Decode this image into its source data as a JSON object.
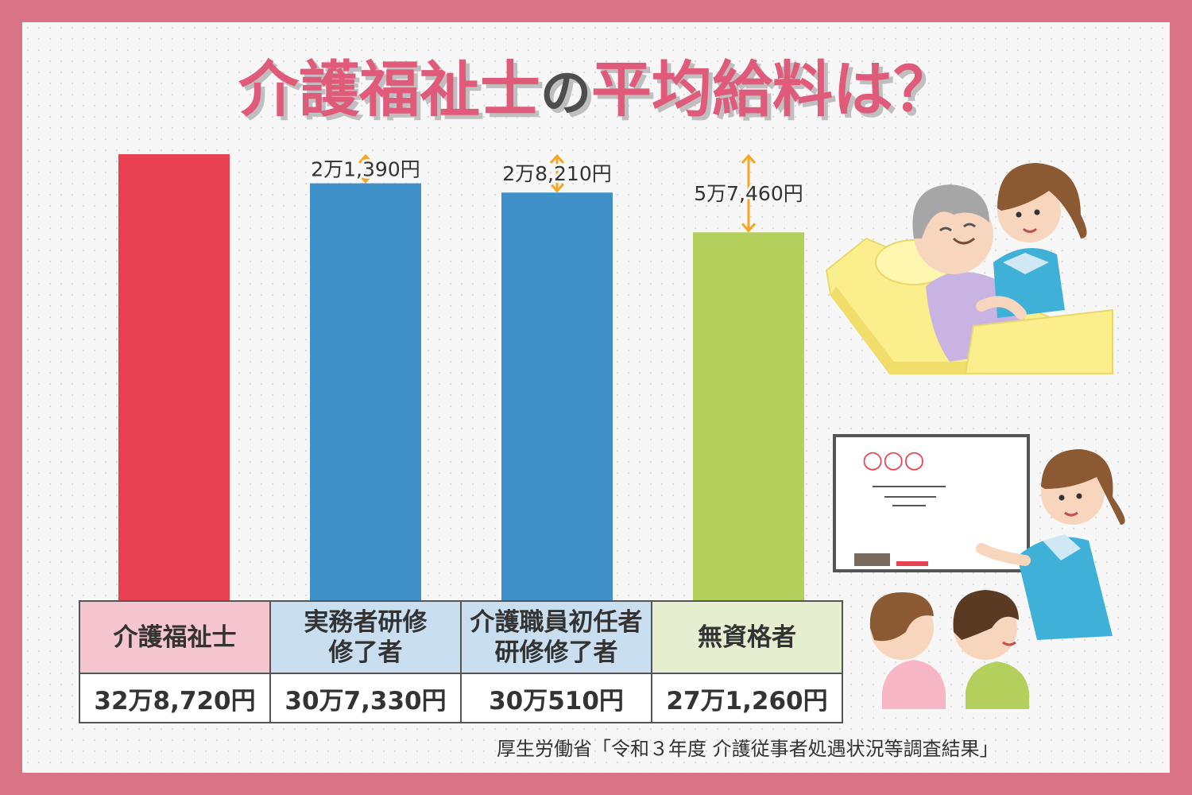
{
  "title": {
    "part1": "介護福祉士",
    "particle": "の",
    "part2": "平均給料は？"
  },
  "colors": {
    "frame": "#d97386",
    "title_pink": "#e05a7a",
    "arrow": "#f5a623"
  },
  "chart_data": {
    "type": "bar",
    "categories": [
      "介護福祉士",
      "実務者研修\n修了者",
      "介護職員初任者\n研修修了者",
      "無資格者"
    ],
    "values": [
      328720,
      307330,
      300510,
      271260
    ],
    "value_labels": [
      "32万8,720円",
      "30万7,330円",
      "30万510円",
      "27万1,260円"
    ],
    "bar_colors": [
      "#e84151",
      "#4091c9",
      "#4091c9",
      "#b3cf5c"
    ],
    "header_colors": [
      "#f5c6cf",
      "#c9dff0",
      "#c9dff0",
      "#e5efcf"
    ],
    "differences": [
      null,
      "2万1,390円",
      "2万8,210円",
      "5万7,460円"
    ],
    "unit": "円",
    "grid": false,
    "legend": "none"
  },
  "table": {
    "headers": [
      [
        "介護福祉士"
      ],
      [
        "実務者研修",
        "修了者"
      ],
      [
        "介護職員初任者",
        "研修修了者"
      ],
      [
        "無資格者"
      ]
    ],
    "values": [
      "32万8,720円",
      "30万7,330円",
      "30万510円",
      "27万1,260円"
    ]
  },
  "whiteboard": {
    "circles": "○○○"
  },
  "source": "厚生労働省「令和３年度 介護従事者処遇状況等調査結果」"
}
